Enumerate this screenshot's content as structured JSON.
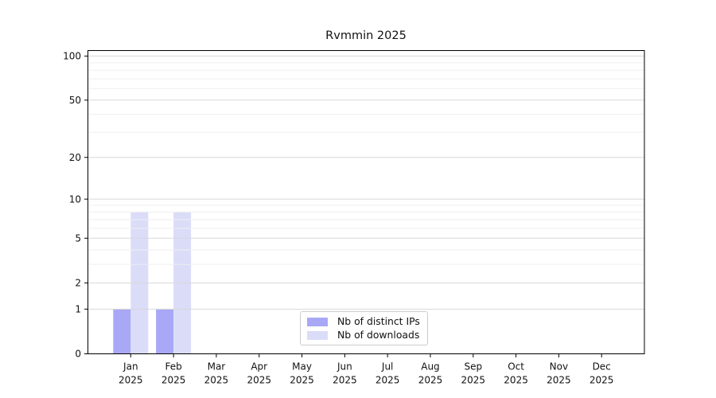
{
  "chart_data": {
    "type": "bar",
    "title": "Rvmmin 2025",
    "categories": [
      "Jan",
      "Feb",
      "Mar",
      "Apr",
      "May",
      "Jun",
      "Jul",
      "Aug",
      "Sep",
      "Oct",
      "Nov",
      "Dec"
    ],
    "x_year_label": "2025",
    "series": [
      {
        "name": "Nb of distinct IPs",
        "color": "#a8a8f7",
        "values": [
          1,
          1,
          0,
          0,
          0,
          0,
          0,
          0,
          0,
          0,
          0,
          0
        ]
      },
      {
        "name": "Nb of downloads",
        "color": "#dbdcf8",
        "values": [
          8,
          8,
          0,
          0,
          0,
          0,
          0,
          0,
          0,
          0,
          0,
          0
        ]
      }
    ],
    "y_scale": "log1p",
    "y_major_ticks": [
      0,
      1,
      2,
      5,
      10,
      20,
      50,
      100
    ],
    "y_minor_ticks": [
      3,
      4,
      6,
      7,
      8,
      9,
      30,
      40,
      60,
      70,
      80,
      90
    ],
    "ylim": [
      0,
      100
    ],
    "xlabel": "",
    "ylabel": "",
    "grid": "horizontal",
    "legend_position": "lower-center",
    "colors": {
      "background": "#ffffff",
      "axis": "#000000",
      "tick_text": "#111111",
      "major_grid": "#d8d8d8",
      "minor_grid": "#efeff0",
      "legend_border": "#cccccc"
    }
  }
}
